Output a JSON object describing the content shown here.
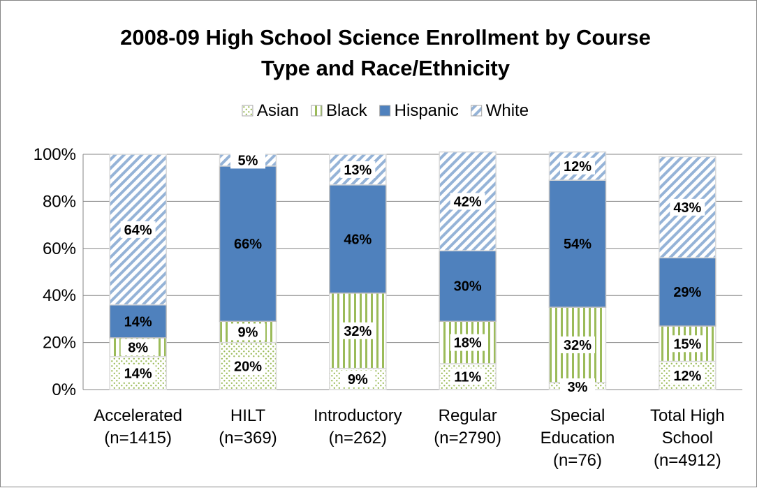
{
  "chart_data": {
    "type": "bar",
    "stacked": true,
    "percent_stacked": true,
    "title": "2008-09 High School Science Enrollment by Course Type and Race/Ethnicity",
    "title_lines": [
      "2008-09 High School Science Enrollment by Course",
      "Type and Race/Ethnicity"
    ],
    "legend_position": "top",
    "grid": true,
    "ylim": [
      0,
      100
    ],
    "y_ticks": [
      "0%",
      "20%",
      "40%",
      "60%",
      "80%",
      "100%"
    ],
    "categories": [
      [
        "Accelerated",
        "(n=1415)"
      ],
      [
        "HILT",
        "(n=369)"
      ],
      [
        "Introductory",
        "(n=262)"
      ],
      [
        "Regular",
        "(n=2790)"
      ],
      [
        "Special",
        "Education",
        "(n=76)"
      ],
      [
        "Total High",
        "School",
        "(n=4912)"
      ]
    ],
    "series": [
      {
        "name": "Asian",
        "pattern": "dots",
        "color": "#9bbb59",
        "values": [
          14,
          20,
          9,
          11,
          3,
          12
        ],
        "labels": [
          "14%",
          "20%",
          "9%",
          "11%",
          "3%",
          "12%"
        ]
      },
      {
        "name": "Black",
        "pattern": "vertical-stripes",
        "color": "#9bbb59",
        "values": [
          8,
          9,
          32,
          18,
          32,
          15
        ],
        "labels": [
          "8%",
          "9%",
          "32%",
          "18%",
          "32%",
          "15%"
        ]
      },
      {
        "name": "Hispanic",
        "pattern": "solid",
        "color": "#4f81bd",
        "values": [
          14,
          66,
          46,
          30,
          54,
          29
        ],
        "labels": [
          "14%",
          "66%",
          "46%",
          "30%",
          "54%",
          "29%"
        ]
      },
      {
        "name": "White",
        "pattern": "diagonal-stripes",
        "color": "#95b3d7",
        "values": [
          64,
          5,
          13,
          42,
          12,
          43
        ],
        "labels": [
          "64%",
          "5%",
          "13%",
          "42%",
          "12%",
          "43%"
        ]
      }
    ]
  }
}
